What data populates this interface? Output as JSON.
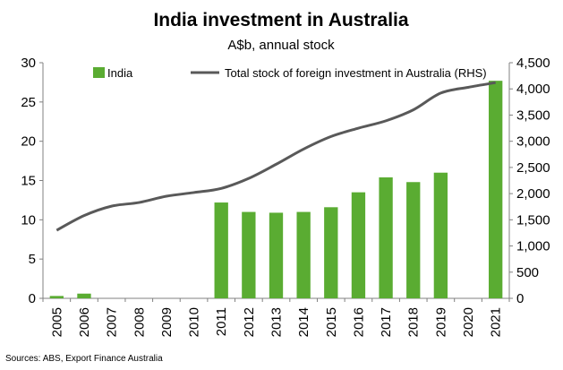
{
  "chart_data": {
    "type": "bar",
    "title": "India investment in Australia",
    "subtitle": "A$b, annual stock",
    "source": "Sources: ABS, Export Finance Australia",
    "categories": [
      "2005",
      "2006",
      "2007",
      "2008",
      "2009",
      "2010",
      "2011",
      "2012",
      "2013",
      "2014",
      "2015",
      "2016",
      "2017",
      "2018",
      "2019",
      "2020",
      "2021"
    ],
    "series": [
      {
        "name": "India",
        "type": "bar",
        "axis": "left",
        "color": "#5aac32",
        "values": [
          0.3,
          0.6,
          null,
          null,
          null,
          null,
          12.2,
          11.0,
          10.9,
          11.0,
          11.6,
          13.5,
          15.4,
          14.8,
          16.0,
          null,
          27.7
        ]
      },
      {
        "name": "Total stock of foreign investment in Australia (RHS)",
        "type": "line",
        "axis": "right",
        "color": "#595959",
        "values": [
          1300,
          1580,
          1760,
          1830,
          1950,
          2020,
          2100,
          2290,
          2560,
          2850,
          3090,
          3250,
          3390,
          3600,
          3920,
          4030,
          4120
        ]
      }
    ],
    "yleft": {
      "min": 0,
      "max": 30,
      "ticks": [
        "0",
        "5",
        "10",
        "15",
        "20",
        "25",
        "30"
      ]
    },
    "yright": {
      "min": 0,
      "max": 4500,
      "ticks": [
        "0",
        "500",
        "1,000",
        "1,500",
        "2,000",
        "2,500",
        "3,000",
        "3,500",
        "4,000",
        "4,500"
      ]
    },
    "grid": false,
    "legend": "top"
  }
}
